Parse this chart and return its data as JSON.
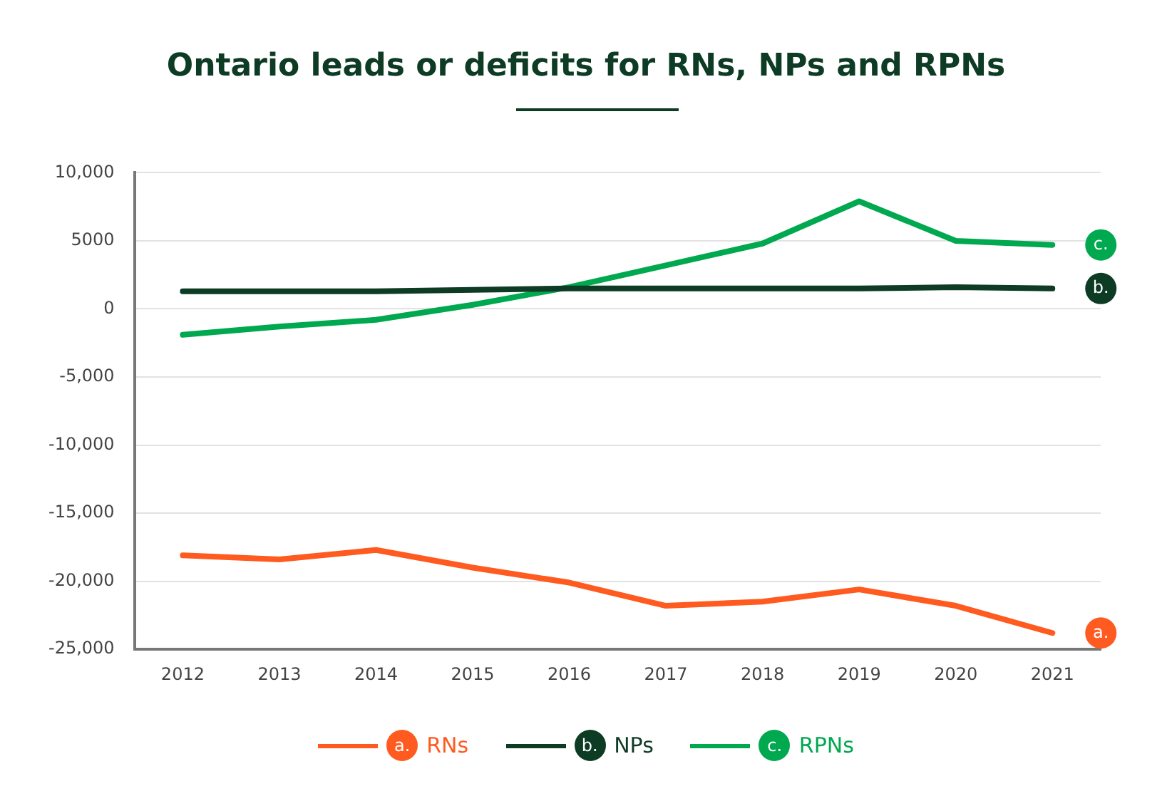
{
  "chart_data": {
    "type": "line",
    "title": "Ontario leads or deficits for RNs, NPs and RPNs",
    "categories": [
      "2012",
      "2013",
      "2014",
      "2015",
      "2016",
      "2017",
      "2018",
      "2019",
      "2020",
      "2021"
    ],
    "series": [
      {
        "name": "a. RNs",
        "color": "#ff5a1f",
        "values": [
          -18100,
          -18400,
          -17700,
          -19000,
          -20100,
          -21800,
          -21500,
          -20600,
          -21800,
          -23800
        ]
      },
      {
        "name": "b. NPs",
        "color": "#0d3b24",
        "values": [
          1300,
          1300,
          1300,
          1400,
          1500,
          1500,
          1500,
          1500,
          1600,
          1500
        ]
      },
      {
        "name": "c. RPNs",
        "color": "#00a84f",
        "values": [
          -1900,
          -1300,
          -800,
          300,
          1600,
          3200,
          4800,
          7900,
          5000,
          4700
        ]
      }
    ],
    "ylim": [
      -25000,
      10000
    ],
    "yticks": [
      {
        "value": -25000,
        "label": "-25,000"
      },
      {
        "value": -20000,
        "label": "-20,000"
      },
      {
        "value": -15000,
        "label": "-15,000"
      },
      {
        "value": -10000,
        "label": "-10,000"
      },
      {
        "value": -5000,
        "label": "-5,000"
      },
      0,
      5000,
      {
        "value": 10000,
        "label": "10,000"
      }
    ],
    "grid": "y",
    "legend": "bottom",
    "marker": "none",
    "line_style": "solid",
    "annotations": [
      {
        "text": "a.",
        "x": "2021",
        "y": -23800
      },
      {
        "text": "b.",
        "x": "2021",
        "y": 1500
      },
      {
        "text": "c.",
        "x": "2021",
        "y": 4700
      }
    ]
  }
}
